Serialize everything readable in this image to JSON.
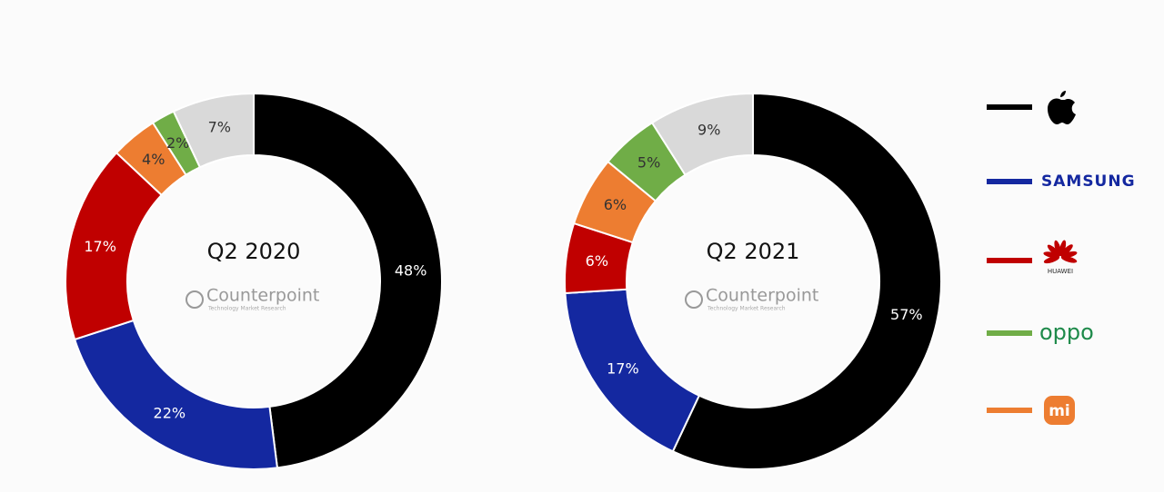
{
  "chart_data": [
    {
      "type": "pie",
      "title": "Q2 2020",
      "watermark": "Counterpoint",
      "watermark_subtitle": "Technology Market Research",
      "values": [
        48,
        22,
        17,
        4,
        2,
        7
      ],
      "value_labels": [
        "48%",
        "22%",
        "17%",
        "4%",
        "2%",
        "7%"
      ],
      "colors": [
        "#000000",
        "#1428a0",
        "#c00000",
        "#ed7d31",
        "#70ad47",
        "#d9d9d9"
      ]
    },
    {
      "type": "pie",
      "title": "Q2 2021",
      "watermark": "Counterpoint",
      "watermark_subtitle": "Technology Market Research",
      "values": [
        57,
        17,
        6,
        6,
        5,
        9
      ],
      "value_labels": [
        "57%",
        "17%",
        "6%",
        "6%",
        "5%",
        "9%"
      ],
      "colors": [
        "#000000",
        "#1428a0",
        "#c00000",
        "#ed7d31",
        "#70ad47",
        "#d9d9d9"
      ]
    }
  ],
  "legend": [
    {
      "color": "#000000"
    },
    {
      "color": "#1428a0",
      "label": "SAMSUNG"
    },
    {
      "color": "#c00000",
      "label": "HUAWEI"
    },
    {
      "color": "#70ad47",
      "label": "oppo"
    },
    {
      "color": "#ed7d31",
      "label": "mi"
    }
  ]
}
